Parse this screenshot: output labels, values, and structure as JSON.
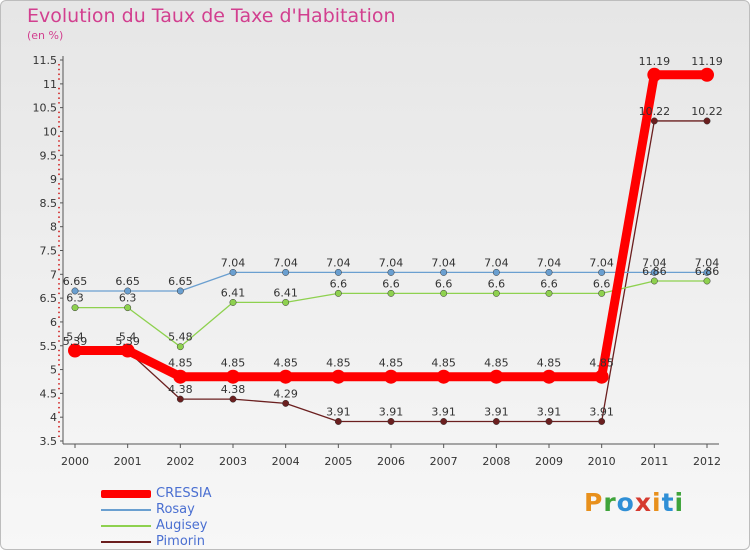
{
  "chart_data": {
    "type": "line",
    "title": "Evolution du Taux de Taxe d'Habitation",
    "ylabel": "(en %)",
    "xlabel": "",
    "ylim": [
      3.5,
      11.5
    ],
    "yticks": [
      "3.5",
      "4",
      "4.5",
      "5",
      "5.5",
      "6",
      "6.5",
      "7",
      "7.5",
      "8",
      "8.5",
      "9",
      "9.5",
      "10",
      "10.5",
      "11",
      "11.5"
    ],
    "categories": [
      "2000",
      "2001",
      "2002",
      "2003",
      "2004",
      "2005",
      "2006",
      "2007",
      "2008",
      "2009",
      "2010",
      "2011",
      "2012"
    ],
    "series": [
      {
        "name": "Pimorin",
        "color": "#6b1f1f",
        "values": [
          5.39,
          5.39,
          4.38,
          4.38,
          4.29,
          3.91,
          3.91,
          3.91,
          3.91,
          3.91,
          3.91,
          10.22,
          10.22
        ],
        "labels": [
          "5.39",
          "5.39",
          "4.38",
          "4.38",
          "4.29",
          "3.91",
          "3.91",
          "3.91",
          "3.91",
          "3.91",
          "3.91",
          "10.22",
          "10.22"
        ]
      },
      {
        "name": "Augisey",
        "color": "#8ed14f",
        "values": [
          6.3,
          6.3,
          5.48,
          6.41,
          6.41,
          6.6,
          6.6,
          6.6,
          6.6,
          6.6,
          6.6,
          6.86,
          6.86
        ],
        "labels": [
          "6.3",
          "6.3",
          "5.48",
          "6.41",
          "6.41",
          "6.6",
          "6.6",
          "6.6",
          "6.6",
          "6.6",
          "6.6",
          "6.86",
          "6.86"
        ]
      },
      {
        "name": "Rosay",
        "color": "#6a9fd0",
        "values": [
          6.65,
          6.65,
          6.65,
          7.04,
          7.04,
          7.04,
          7.04,
          7.04,
          7.04,
          7.04,
          7.04,
          7.04,
          7.04
        ],
        "labels": [
          "6.65",
          "6.65",
          "6.65",
          "7.04",
          "7.04",
          "7.04",
          "7.04",
          "7.04",
          "7.04",
          "7.04",
          "7.04",
          "7.04",
          "7.04"
        ]
      },
      {
        "name": "CRESSIA",
        "color": "#ff0000",
        "values": [
          5.4,
          5.4,
          4.85,
          4.85,
          4.85,
          4.85,
          4.85,
          4.85,
          4.85,
          4.85,
          4.85,
          11.19,
          11.19
        ],
        "labels": [
          "5.4",
          "5.4",
          "4.85",
          "4.85",
          "4.85",
          "4.85",
          "4.85",
          "4.85",
          "4.85",
          "4.85",
          "4.85",
          "11.19",
          "11.19"
        ]
      }
    ],
    "legend": [
      "CRESSIA",
      "Rosay",
      "Augisey",
      "Pimorin"
    ],
    "legend_position": "bottom-left",
    "grid": false
  },
  "brand": "Proxiti"
}
